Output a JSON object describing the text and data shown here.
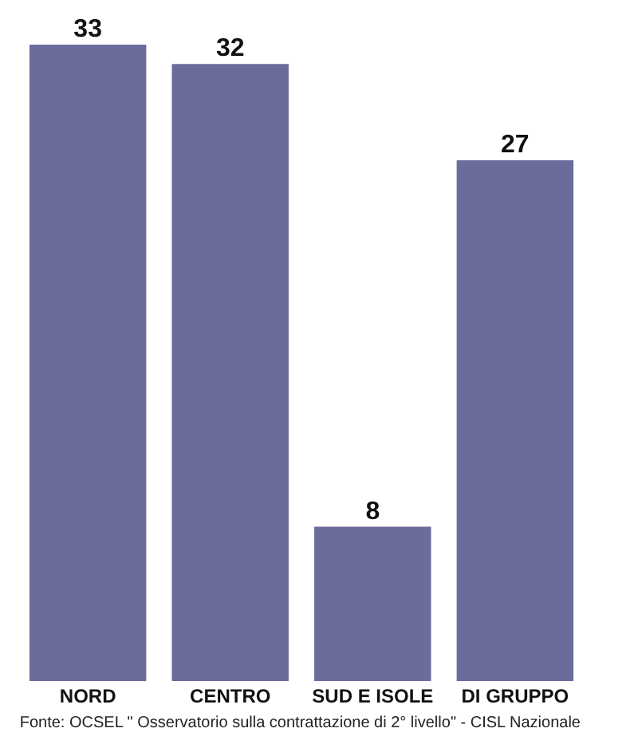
{
  "chart_data": {
    "type": "bar",
    "categories": [
      "NORD",
      "CENTRO",
      "SUD E ISOLE",
      "DI GRUPPO"
    ],
    "values": [
      33,
      32,
      8,
      27
    ],
    "color": "#6b6b9c",
    "data_labels": true,
    "annotations": [
      "Fonte: OCSEL \" Osservatorio sulla contrattazione di 2° livello\" - CISL Nazionale"
    ]
  }
}
